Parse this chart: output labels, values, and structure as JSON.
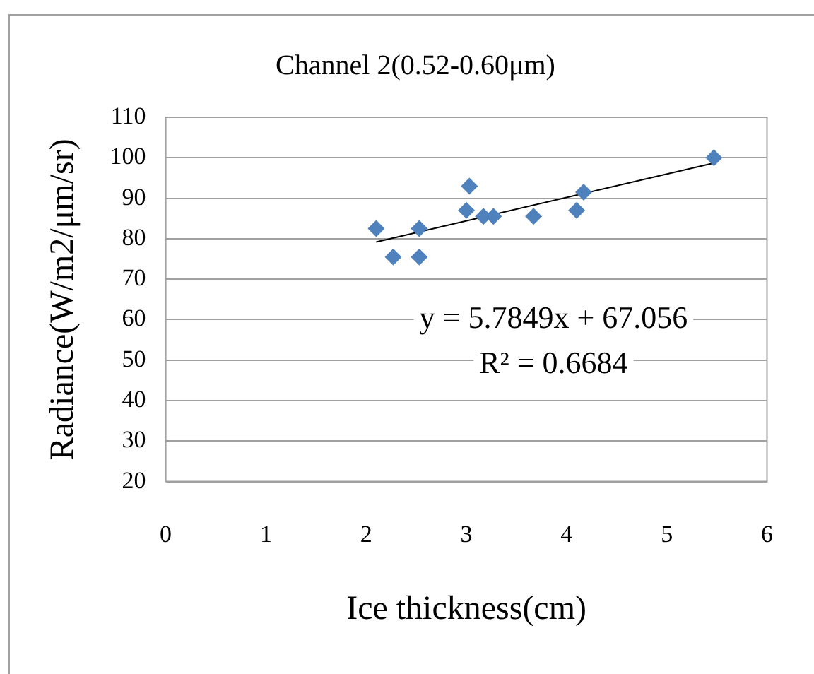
{
  "chart_data": {
    "type": "scatter",
    "title": "Channel 2(0.52-0.60μm)",
    "xlabel": "Ice thickness(cm)",
    "ylabel": "Radiance(W/m2/μm/sr)",
    "annotations": [
      "y = 5.7849x + 67.056",
      "R² = 0.6684"
    ],
    "xlim": [
      0,
      6
    ],
    "xticks": [
      0,
      1,
      2,
      3,
      4,
      5,
      6
    ],
    "ylim": [
      20,
      110
    ],
    "yticks": [
      20,
      30,
      40,
      50,
      60,
      70,
      80,
      90,
      100,
      110
    ],
    "grid": "y",
    "legend": false,
    "marker": "diamond",
    "series": [
      {
        "color": "#4f81bd",
        "x": [
          2.1,
          2.27,
          2.53,
          2.53,
          3.0,
          3.03,
          3.17,
          3.27,
          3.67,
          4.1,
          4.17,
          5.47
        ],
        "values": [
          82.5,
          75.5,
          82.5,
          75.5,
          87,
          93,
          85.5,
          85.5,
          85.5,
          87,
          91.5,
          100
        ]
      },
      {
        "type": "line",
        "color": "#000000",
        "marker": "none",
        "line_style": "solid",
        "x": [
          2.1,
          5.47
        ],
        "values": [
          79.2,
          98.7
        ]
      }
    ]
  }
}
